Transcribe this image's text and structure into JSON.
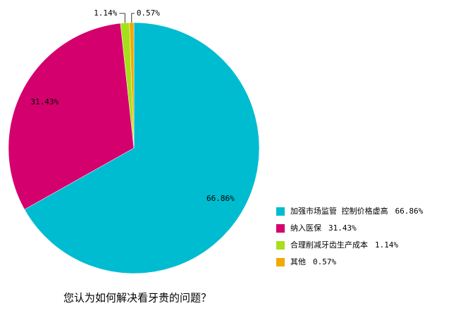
{
  "chart_data": {
    "type": "pie",
    "title": "您认为如何解决看牙贵的问题？",
    "categories": [
      "加强市场监管 控制价格虚高",
      "纳入医保",
      "合理削减牙齿生产成本",
      "其他"
    ],
    "values": [
      66.86,
      31.43,
      1.14,
      0.57
    ],
    "value_labels": [
      "66.86%",
      "31.43%",
      "1.14%",
      "0.57%"
    ],
    "colors": [
      "#00bcd0",
      "#d4006e",
      "#a6e01a",
      "#f2a900"
    ],
    "legend": "right"
  }
}
